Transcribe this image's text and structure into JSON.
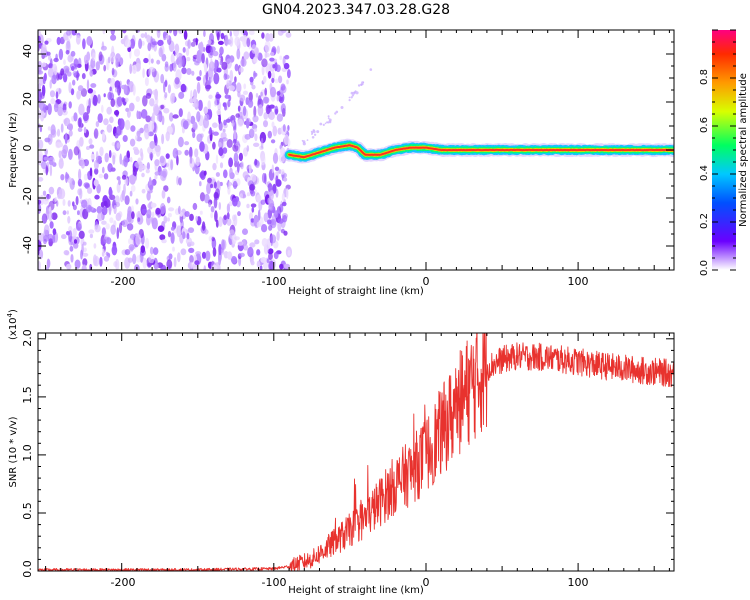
{
  "title": "GN04.2023.347.03.28.G28",
  "chart_data": [
    {
      "type": "heatmap",
      "xlabel": "Height of straight line (km)",
      "ylabel": "Frequency (Hz)",
      "xlim": [
        -255,
        163
      ],
      "ylim": [
        -50,
        50
      ],
      "xticks": [
        -200,
        -100,
        0,
        100
      ],
      "yticks": [
        -40,
        -20,
        0,
        20,
        40
      ],
      "noise_region": [
        -255,
        -90
      ],
      "line_trace": {
        "x": [
          -90,
          -80,
          -70,
          -60,
          -50,
          -45,
          -40,
          -30,
          -20,
          -10,
          0,
          10,
          20,
          60,
          100,
          163
        ],
        "y": [
          -2,
          -3,
          -1,
          1,
          2,
          1,
          -2,
          -2,
          0,
          1,
          1,
          0,
          0,
          0,
          0,
          0
        ]
      },
      "faint_branch": {
        "x": [
          -82,
          -60,
          -45,
          -35
        ],
        "y": [
          2,
          15,
          25,
          35
        ]
      },
      "colorbar": {
        "label": "Normalized spectral amplitude",
        "ticks": [
          "0.0",
          "0.2",
          "0.4",
          "0.6",
          "0.8"
        ],
        "range": [
          0,
          1
        ],
        "colormap": "rainbow"
      }
    },
    {
      "type": "line",
      "xlabel": "Height of straight line (km)",
      "ylabel": "SNR (10 * v/v)",
      "y_multiplier": "(x10",
      "y_multiplier_exp": "4",
      "y_multiplier_close": ")",
      "xlim": [
        -255,
        163
      ],
      "ylim": [
        0,
        2.05
      ],
      "xticks": [
        -200,
        -100,
        0,
        100
      ],
      "yticks": [
        "0.0",
        "0.5",
        "1.0",
        "1.5",
        "2.0"
      ],
      "series": [
        {
          "color": "#e8322e",
          "x": [
            -255,
            -200,
            -150,
            -100,
            -90,
            -75,
            -60,
            -50,
            -40,
            -30,
            -20,
            -10,
            0,
            10,
            20,
            30,
            40,
            50,
            60,
            80,
            100,
            120,
            140,
            163
          ],
          "y": [
            0.01,
            0.01,
            0.01,
            0.02,
            0.04,
            0.1,
            0.25,
            0.35,
            0.45,
            0.6,
            0.75,
            0.85,
            1.0,
            1.2,
            1.4,
            1.6,
            1.75,
            1.82,
            1.85,
            1.84,
            1.8,
            1.76,
            1.73,
            1.7
          ]
        }
      ]
    }
  ]
}
